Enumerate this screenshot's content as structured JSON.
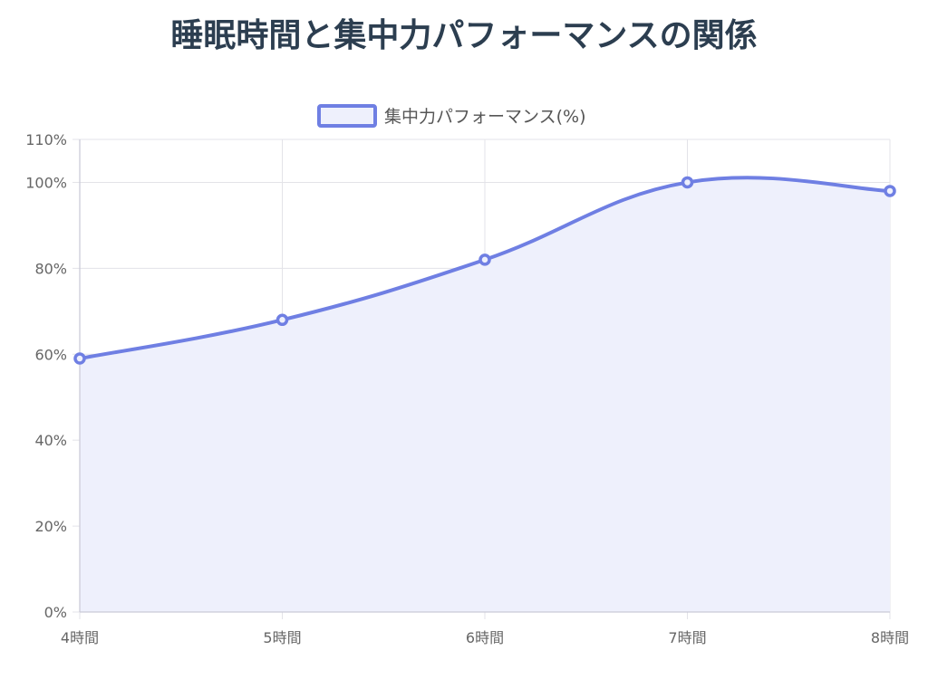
{
  "chart_data": {
    "type": "line",
    "title": "睡眠時間と集中力パフォーマンスの関係",
    "categories": [
      "4時間",
      "5時間",
      "6時間",
      "7時間",
      "8時間"
    ],
    "series": [
      {
        "name": "集中力パフォーマンス(%)",
        "values": [
          59,
          68,
          82,
          100,
          98
        ]
      }
    ],
    "y_ticks": [
      0,
      20,
      40,
      60,
      80,
      100,
      110
    ],
    "y_tick_suffix": "%",
    "ylim": [
      0,
      110
    ],
    "curve": "smooth",
    "fill": true,
    "grid": true,
    "legend_position": "top-center",
    "colors": {
      "line": "#6f7fe3",
      "fill": "#eef0fc",
      "grid": "#e3e3e8",
      "axis": "#c9c9d6",
      "tick_text": "#666666",
      "title": "#2c3e50"
    }
  }
}
